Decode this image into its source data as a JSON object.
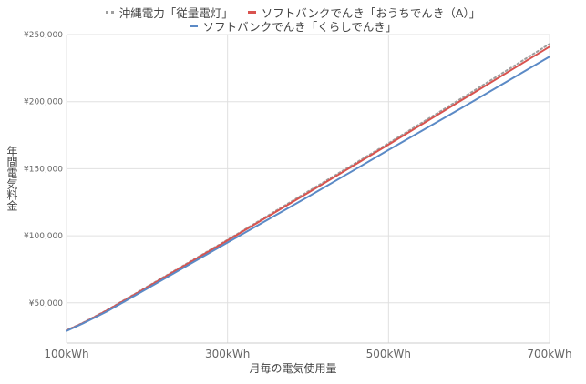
{
  "chart_data": {
    "type": "line",
    "title": "",
    "xlabel": "月毎の電気使用量",
    "ylabel": "年間電気料金",
    "x": [
      100,
      120,
      150,
      200,
      300,
      400,
      500,
      600,
      700
    ],
    "x_ticks": [
      100,
      300,
      500,
      700
    ],
    "x_tick_labels": [
      "100kWh",
      "300kWh",
      "500kWh",
      "700kWh"
    ],
    "xlim": [
      100,
      700
    ],
    "y_ticks": [
      50000,
      100000,
      150000,
      200000,
      250000
    ],
    "y_tick_labels": [
      "¥50,000",
      "¥100,000",
      "¥150,000",
      "¥200,000",
      "¥250,000"
    ],
    "ylim": [
      20000,
      250000
    ],
    "grid": true,
    "legend_position": "top",
    "series": [
      {
        "name": "沖縄電力「従量電灯」",
        "color": "#9e9e9e",
        "style": "dotted",
        "values": [
          29500,
          35000,
          44500,
          62000,
          97000,
          133000,
          169000,
          206000,
          243000
        ]
      },
      {
        "name": "ソフトバンクでんき「おうちでんき（A）」",
        "color": "#d9534f",
        "style": "solid",
        "values": [
          29300,
          34800,
          44200,
          61600,
          96500,
          132000,
          168000,
          204500,
          241000
        ]
      },
      {
        "name": "ソフトバンクでんき「くらしでんき」",
        "color": "#5b8ac6",
        "style": "solid",
        "values": [
          29000,
          34500,
          43500,
          60500,
          95000,
          129000,
          164000,
          198500,
          233500
        ]
      }
    ]
  }
}
